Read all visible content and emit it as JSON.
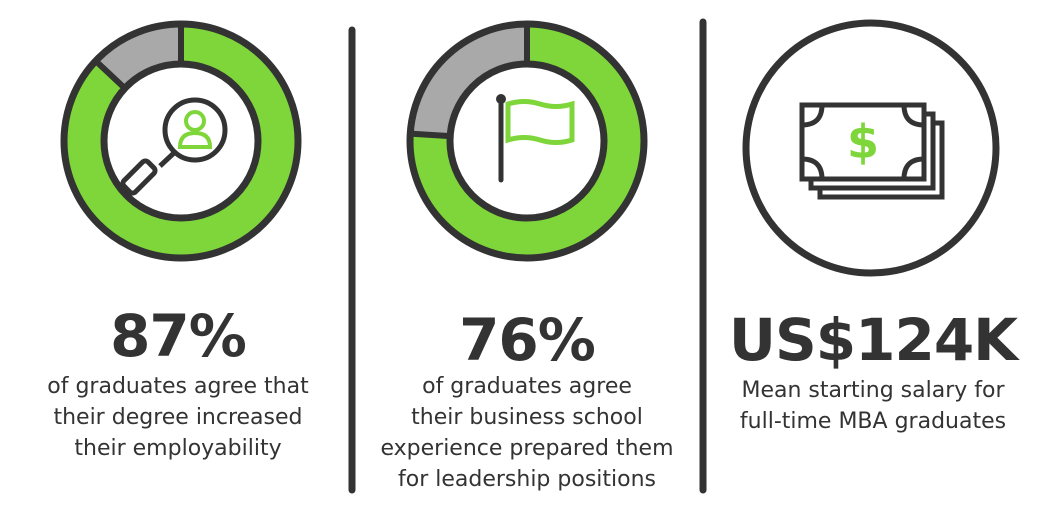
{
  "stats": [
    {
      "value": 87,
      "label": "87%",
      "text": [
        "of graduates agree that",
        "their degree increased",
        "their employability"
      ]
    },
    {
      "value": 76,
      "label": "76%",
      "text": [
        "of graduates agree",
        "their business school",
        "experience prepared them",
        "for leadership positions"
      ]
    },
    {
      "label": "US$124K",
      "text": [
        "Mean starting salary for",
        "full-time MBA graduates"
      ]
    }
  ]
}
